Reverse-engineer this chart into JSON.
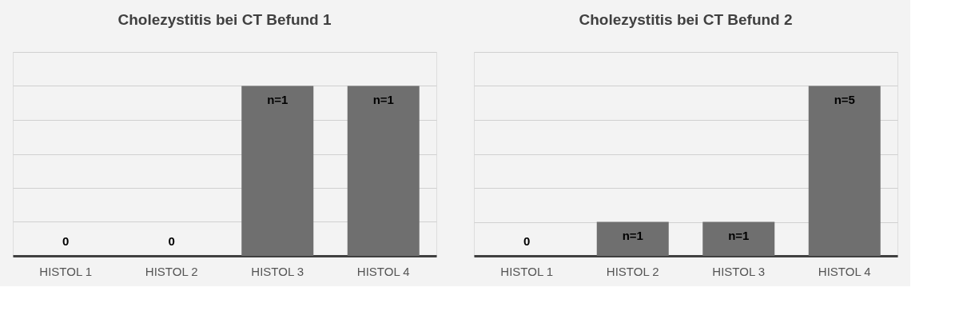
{
  "chart_data": [
    {
      "type": "bar",
      "title": "Cholezystitis bei CT Befund 1",
      "categories": [
        "HISTOL 1",
        "HISTOL 2",
        "HISTOL 3",
        "HISTOL 4"
      ],
      "values": [
        0,
        0,
        1,
        1
      ],
      "value_labels": [
        "0",
        "0",
        "n=1",
        "n=1"
      ],
      "color": "#6f6f6f",
      "ylim": [
        0,
        1.2
      ],
      "yticks": [
        {
          "value": 0,
          "label": null
        },
        {
          "value": 0.2,
          "label": null
        },
        {
          "value": 0.4,
          "label": null
        },
        {
          "value": 0.6,
          "label": null
        },
        {
          "value": 0.8,
          "label": null
        },
        {
          "value": 1.0,
          "label": null
        },
        {
          "value": 1.2,
          "label": null
        }
      ],
      "grid": "y",
      "tick_labels": "x"
    },
    {
      "type": "bar",
      "title": "Cholezystitis bei CT Befund 2",
      "categories": [
        "HISTOL 1",
        "HISTOL 2",
        "HISTOL 3",
        "HISTOL 4"
      ],
      "values": [
        0,
        1,
        1,
        5
      ],
      "value_labels": [
        "0",
        "n=1",
        "n=1",
        "n=5"
      ],
      "color": "#6f6f6f",
      "ylim": [
        0,
        6
      ],
      "yticks": [
        {
          "value": 0,
          "label": null
        },
        {
          "value": 1,
          "label": null
        },
        {
          "value": 2,
          "label": null
        },
        {
          "value": 3,
          "label": null
        },
        {
          "value": 4,
          "label": null
        },
        {
          "value": 5,
          "label": null
        },
        {
          "value": 6,
          "label": null
        }
      ],
      "grid": "y",
      "tick_labels": "x"
    }
  ]
}
